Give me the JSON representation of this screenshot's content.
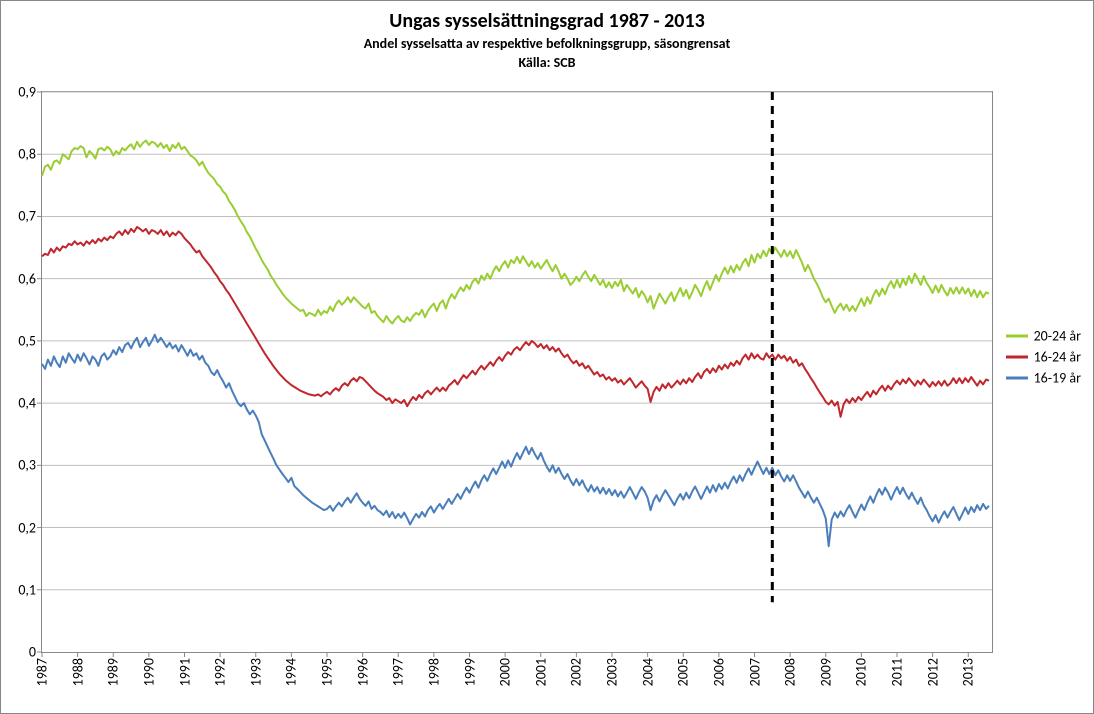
{
  "chart": {
    "type": "line",
    "title": "Ungas sysselsättningsgrad 1987 - 2013",
    "subtitle": "Andel sysselsatta av respektive befolkningsgrupp, säsongrensat",
    "source_line": "Källa: SCB",
    "title_fontsize": 20,
    "subtitle_fontsize": 14,
    "background_color": "#ffffff",
    "border_color": "#888888",
    "grid_color": "#bfbfbf",
    "tick_color": "#888888",
    "axis_font_size": 14,
    "y_axis": {
      "min": 0,
      "max": 0.9,
      "step": 0.1,
      "labels": [
        "0",
        "0,1",
        "0,2",
        "0,3",
        "0,4",
        "0,5",
        "0,6",
        "0,7",
        "0,8",
        "0,9"
      ]
    },
    "x_axis": {
      "min": 0,
      "max": 320,
      "year_start": 1987,
      "year_end": 2013,
      "year_labels": [
        "1987",
        "1988",
        "1989",
        "1990",
        "1991",
        "1992",
        "1993",
        "1994",
        "1995",
        "1996",
        "1997",
        "1998",
        "1999",
        "2000",
        "2001",
        "2002",
        "2003",
        "2004",
        "2005",
        "2006",
        "2007",
        "2008",
        "2009",
        "2010",
        "2011",
        "2012",
        "2013"
      ]
    },
    "marker_line": {
      "x": 246,
      "color": "#000000",
      "width": 3,
      "dash": "8,6",
      "y_from": 0.08,
      "y_to": 0.9
    },
    "series": [
      {
        "name": "20-24 år",
        "color": "#9acd32",
        "width": 2,
        "values": [
          0.765,
          0.78,
          0.783,
          0.775,
          0.788,
          0.79,
          0.785,
          0.8,
          0.796,
          0.792,
          0.805,
          0.81,
          0.808,
          0.813,
          0.81,
          0.795,
          0.805,
          0.8,
          0.793,
          0.808,
          0.81,
          0.806,
          0.812,
          0.808,
          0.798,
          0.805,
          0.8,
          0.81,
          0.806,
          0.812,
          0.816,
          0.808,
          0.82,
          0.812,
          0.818,
          0.822,
          0.815,
          0.82,
          0.818,
          0.812,
          0.818,
          0.81,
          0.815,
          0.805,
          0.815,
          0.81,
          0.818,
          0.808,
          0.812,
          0.805,
          0.798,
          0.795,
          0.79,
          0.782,
          0.788,
          0.778,
          0.77,
          0.765,
          0.76,
          0.752,
          0.748,
          0.74,
          0.735,
          0.725,
          0.718,
          0.71,
          0.7,
          0.692,
          0.685,
          0.675,
          0.668,
          0.658,
          0.648,
          0.64,
          0.63,
          0.622,
          0.615,
          0.605,
          0.598,
          0.59,
          0.583,
          0.576,
          0.57,
          0.565,
          0.56,
          0.556,
          0.552,
          0.548,
          0.55,
          0.54,
          0.545,
          0.543,
          0.54,
          0.55,
          0.542,
          0.548,
          0.545,
          0.555,
          0.548,
          0.559,
          0.565,
          0.558,
          0.563,
          0.57,
          0.562,
          0.57,
          0.565,
          0.56,
          0.555,
          0.552,
          0.56,
          0.545,
          0.548,
          0.54,
          0.535,
          0.53,
          0.54,
          0.533,
          0.528,
          0.535,
          0.54,
          0.533,
          0.53,
          0.538,
          0.532,
          0.54,
          0.545,
          0.542,
          0.55,
          0.538,
          0.548,
          0.555,
          0.56,
          0.548,
          0.56,
          0.565,
          0.552,
          0.566,
          0.575,
          0.568,
          0.578,
          0.586,
          0.58,
          0.59,
          0.583,
          0.595,
          0.6,
          0.592,
          0.605,
          0.598,
          0.608,
          0.6,
          0.612,
          0.62,
          0.612,
          0.622,
          0.628,
          0.618,
          0.63,
          0.625,
          0.635,
          0.625,
          0.636,
          0.628,
          0.62,
          0.628,
          0.618,
          0.625,
          0.616,
          0.623,
          0.63,
          0.62,
          0.612,
          0.622,
          0.612,
          0.6,
          0.608,
          0.6,
          0.59,
          0.595,
          0.603,
          0.596,
          0.605,
          0.612,
          0.603,
          0.596,
          0.606,
          0.598,
          0.59,
          0.598,
          0.586,
          0.594,
          0.585,
          0.595,
          0.588,
          0.598,
          0.58,
          0.59,
          0.583,
          0.576,
          0.585,
          0.57,
          0.58,
          0.573,
          0.562,
          0.572,
          0.552,
          0.564,
          0.576,
          0.568,
          0.56,
          0.57,
          0.578,
          0.564,
          0.575,
          0.585,
          0.572,
          0.582,
          0.568,
          0.578,
          0.59,
          0.582,
          0.572,
          0.586,
          0.596,
          0.582,
          0.594,
          0.606,
          0.596,
          0.608,
          0.618,
          0.608,
          0.62,
          0.61,
          0.622,
          0.614,
          0.625,
          0.632,
          0.62,
          0.638,
          0.626,
          0.64,
          0.633,
          0.645,
          0.636,
          0.648,
          0.64,
          0.65,
          0.642,
          0.635,
          0.646,
          0.636,
          0.644,
          0.633,
          0.646,
          0.636,
          0.626,
          0.612,
          0.622,
          0.612,
          0.6,
          0.592,
          0.582,
          0.57,
          0.562,
          0.568,
          0.556,
          0.545,
          0.554,
          0.56,
          0.55,
          0.558,
          0.548,
          0.556,
          0.548,
          0.558,
          0.568,
          0.556,
          0.57,
          0.56,
          0.573,
          0.582,
          0.572,
          0.584,
          0.575,
          0.588,
          0.596,
          0.585,
          0.598,
          0.586,
          0.6,
          0.59,
          0.604,
          0.593,
          0.608,
          0.6,
          0.59,
          0.604,
          0.593,
          0.586,
          0.577,
          0.589,
          0.578,
          0.59,
          0.58,
          0.573,
          0.585,
          0.576,
          0.586,
          0.576,
          0.586,
          0.576,
          0.584,
          0.572,
          0.582,
          0.57,
          0.58,
          0.57,
          0.578,
          0.576
        ]
      },
      {
        "name": "16-24 år",
        "color": "#c0272d",
        "width": 2,
        "values": [
          0.636,
          0.64,
          0.638,
          0.648,
          0.642,
          0.65,
          0.645,
          0.652,
          0.65,
          0.656,
          0.654,
          0.66,
          0.655,
          0.658,
          0.653,
          0.66,
          0.656,
          0.662,
          0.657,
          0.664,
          0.66,
          0.666,
          0.662,
          0.668,
          0.665,
          0.672,
          0.676,
          0.67,
          0.678,
          0.672,
          0.68,
          0.675,
          0.683,
          0.68,
          0.676,
          0.68,
          0.672,
          0.678,
          0.676,
          0.672,
          0.678,
          0.67,
          0.676,
          0.668,
          0.674,
          0.67,
          0.676,
          0.672,
          0.665,
          0.66,
          0.655,
          0.648,
          0.642,
          0.645,
          0.636,
          0.63,
          0.624,
          0.618,
          0.61,
          0.604,
          0.596,
          0.59,
          0.582,
          0.576,
          0.568,
          0.56,
          0.552,
          0.544,
          0.536,
          0.528,
          0.52,
          0.512,
          0.504,
          0.496,
          0.488,
          0.48,
          0.473,
          0.466,
          0.459,
          0.453,
          0.447,
          0.442,
          0.437,
          0.433,
          0.429,
          0.426,
          0.423,
          0.42,
          0.418,
          0.416,
          0.414,
          0.413,
          0.412,
          0.414,
          0.411,
          0.415,
          0.418,
          0.414,
          0.42,
          0.424,
          0.42,
          0.428,
          0.432,
          0.428,
          0.436,
          0.44,
          0.435,
          0.442,
          0.44,
          0.435,
          0.43,
          0.425,
          0.42,
          0.416,
          0.413,
          0.41,
          0.405,
          0.408,
          0.4,
          0.406,
          0.403,
          0.4,
          0.405,
          0.395,
          0.403,
          0.41,
          0.405,
          0.413,
          0.408,
          0.416,
          0.42,
          0.414,
          0.42,
          0.425,
          0.419,
          0.425,
          0.42,
          0.428,
          0.432,
          0.437,
          0.43,
          0.438,
          0.445,
          0.44,
          0.446,
          0.452,
          0.446,
          0.454,
          0.46,
          0.454,
          0.46,
          0.466,
          0.46,
          0.468,
          0.474,
          0.468,
          0.476,
          0.482,
          0.478,
          0.486,
          0.49,
          0.485,
          0.492,
          0.498,
          0.493,
          0.5,
          0.496,
          0.49,
          0.495,
          0.488,
          0.493,
          0.485,
          0.49,
          0.483,
          0.488,
          0.48,
          0.474,
          0.478,
          0.47,
          0.464,
          0.468,
          0.46,
          0.464,
          0.456,
          0.46,
          0.453,
          0.446,
          0.45,
          0.443,
          0.446,
          0.438,
          0.442,
          0.436,
          0.44,
          0.433,
          0.437,
          0.43,
          0.435,
          0.44,
          0.433,
          0.425,
          0.43,
          0.435,
          0.428,
          0.423,
          0.402,
          0.418,
          0.426,
          0.42,
          0.43,
          0.424,
          0.432,
          0.425,
          0.43,
          0.436,
          0.43,
          0.438,
          0.432,
          0.44,
          0.434,
          0.442,
          0.448,
          0.44,
          0.45,
          0.455,
          0.448,
          0.456,
          0.45,
          0.46,
          0.454,
          0.462,
          0.456,
          0.465,
          0.46,
          0.468,
          0.462,
          0.472,
          0.478,
          0.47,
          0.48,
          0.472,
          0.478,
          0.472,
          0.47,
          0.48,
          0.473,
          0.478,
          0.47,
          0.478,
          0.472,
          0.476,
          0.468,
          0.474,
          0.465,
          0.47,
          0.46,
          0.464,
          0.455,
          0.448,
          0.44,
          0.433,
          0.425,
          0.417,
          0.41,
          0.402,
          0.398,
          0.404,
          0.396,
          0.402,
          0.378,
          0.398,
          0.406,
          0.4,
          0.408,
          0.402,
          0.41,
          0.405,
          0.412,
          0.418,
          0.41,
          0.42,
          0.414,
          0.422,
          0.428,
          0.42,
          0.428,
          0.422,
          0.43,
          0.436,
          0.43,
          0.438,
          0.432,
          0.44,
          0.434,
          0.428,
          0.436,
          0.43,
          0.438,
          0.432,
          0.426,
          0.434,
          0.428,
          0.435,
          0.428,
          0.436,
          0.428,
          0.432,
          0.44,
          0.432,
          0.44,
          0.432,
          0.44,
          0.434,
          0.442,
          0.435,
          0.428,
          0.436,
          0.43,
          0.438,
          0.436
        ]
      },
      {
        "name": "16-19 år",
        "color": "#4a7ebb",
        "width": 2,
        "values": [
          0.463,
          0.455,
          0.47,
          0.46,
          0.475,
          0.465,
          0.458,
          0.475,
          0.465,
          0.48,
          0.472,
          0.465,
          0.478,
          0.468,
          0.48,
          0.472,
          0.462,
          0.475,
          0.47,
          0.46,
          0.475,
          0.48,
          0.47,
          0.475,
          0.485,
          0.478,
          0.49,
          0.482,
          0.493,
          0.497,
          0.488,
          0.498,
          0.505,
          0.49,
          0.498,
          0.505,
          0.492,
          0.5,
          0.51,
          0.498,
          0.505,
          0.498,
          0.49,
          0.497,
          0.488,
          0.493,
          0.483,
          0.493,
          0.485,
          0.476,
          0.486,
          0.476,
          0.48,
          0.47,
          0.476,
          0.465,
          0.46,
          0.45,
          0.445,
          0.453,
          0.443,
          0.435,
          0.425,
          0.432,
          0.42,
          0.41,
          0.4,
          0.395,
          0.4,
          0.39,
          0.382,
          0.388,
          0.38,
          0.37,
          0.35,
          0.34,
          0.33,
          0.32,
          0.31,
          0.3,
          0.293,
          0.286,
          0.28,
          0.273,
          0.28,
          0.267,
          0.262,
          0.257,
          0.252,
          0.248,
          0.244,
          0.24,
          0.237,
          0.234,
          0.231,
          0.228,
          0.23,
          0.235,
          0.227,
          0.234,
          0.24,
          0.234,
          0.242,
          0.248,
          0.24,
          0.248,
          0.255,
          0.246,
          0.24,
          0.235,
          0.242,
          0.23,
          0.235,
          0.228,
          0.225,
          0.22,
          0.227,
          0.217,
          0.225,
          0.215,
          0.222,
          0.216,
          0.224,
          0.215,
          0.205,
          0.214,
          0.222,
          0.216,
          0.225,
          0.218,
          0.228,
          0.234,
          0.224,
          0.232,
          0.238,
          0.23,
          0.238,
          0.246,
          0.238,
          0.246,
          0.254,
          0.246,
          0.256,
          0.264,
          0.256,
          0.266,
          0.274,
          0.264,
          0.276,
          0.284,
          0.275,
          0.286,
          0.295,
          0.286,
          0.296,
          0.306,
          0.296,
          0.308,
          0.298,
          0.31,
          0.32,
          0.31,
          0.32,
          0.33,
          0.318,
          0.328,
          0.318,
          0.31,
          0.32,
          0.308,
          0.298,
          0.29,
          0.3,
          0.288,
          0.296,
          0.286,
          0.278,
          0.286,
          0.276,
          0.268,
          0.278,
          0.268,
          0.276,
          0.265,
          0.258,
          0.268,
          0.258,
          0.265,
          0.255,
          0.264,
          0.254,
          0.262,
          0.252,
          0.26,
          0.25,
          0.258,
          0.248,
          0.256,
          0.265,
          0.256,
          0.246,
          0.256,
          0.265,
          0.258,
          0.248,
          0.228,
          0.244,
          0.252,
          0.242,
          0.252,
          0.26,
          0.252,
          0.244,
          0.236,
          0.246,
          0.254,
          0.245,
          0.256,
          0.247,
          0.258,
          0.266,
          0.256,
          0.246,
          0.256,
          0.266,
          0.256,
          0.268,
          0.258,
          0.27,
          0.262,
          0.272,
          0.263,
          0.274,
          0.282,
          0.272,
          0.284,
          0.275,
          0.286,
          0.295,
          0.285,
          0.296,
          0.306,
          0.296,
          0.286,
          0.296,
          0.286,
          0.296,
          0.284,
          0.292,
          0.282,
          0.274,
          0.284,
          0.275,
          0.284,
          0.274,
          0.264,
          0.256,
          0.248,
          0.258,
          0.248,
          0.24,
          0.248,
          0.238,
          0.228,
          0.214,
          0.17,
          0.213,
          0.224,
          0.216,
          0.226,
          0.218,
          0.228,
          0.236,
          0.225,
          0.216,
          0.227,
          0.237,
          0.228,
          0.24,
          0.25,
          0.24,
          0.252,
          0.262,
          0.253,
          0.264,
          0.256,
          0.245,
          0.256,
          0.265,
          0.254,
          0.264,
          0.254,
          0.246,
          0.256,
          0.246,
          0.238,
          0.248,
          0.236,
          0.228,
          0.218,
          0.21,
          0.22,
          0.208,
          0.218,
          0.226,
          0.216,
          0.225,
          0.233,
          0.222,
          0.212,
          0.222,
          0.232,
          0.222,
          0.233,
          0.225,
          0.236,
          0.228,
          0.238,
          0.23,
          0.235
        ]
      }
    ],
    "legend": {
      "font_size": 14,
      "items": [
        {
          "label": "20-24 år",
          "color": "#9acd32"
        },
        {
          "label": "16-24 år",
          "color": "#c0272d"
        },
        {
          "label": "16-19 år",
          "color": "#4a7ebb"
        }
      ]
    }
  }
}
